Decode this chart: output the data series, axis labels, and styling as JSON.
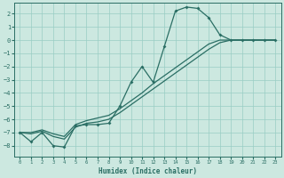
{
  "xlabel": "Humidex (Indice chaleur)",
  "bg_color": "#cce8e0",
  "grid_color": "#99cdc4",
  "line_color": "#2a6e64",
  "xlim": [
    -0.5,
    23.5
  ],
  "ylim": [
    -8.8,
    2.8
  ],
  "x_ticks": [
    0,
    1,
    2,
    3,
    4,
    5,
    6,
    7,
    8,
    9,
    10,
    11,
    12,
    13,
    14,
    15,
    16,
    17,
    18,
    19,
    20,
    21,
    22,
    23
  ],
  "y_ticks": [
    -8,
    -7,
    -6,
    -5,
    -4,
    -3,
    -2,
    -1,
    0,
    1,
    2
  ],
  "curve_x": [
    0,
    1,
    2,
    3,
    4,
    5,
    6,
    7,
    8,
    9,
    10,
    11,
    12,
    13,
    14,
    15,
    16,
    17,
    18,
    19,
    20,
    21,
    22,
    23
  ],
  "curve_y": [
    -7.0,
    -7.7,
    -7.0,
    -8.0,
    -8.1,
    -6.5,
    -6.4,
    -6.4,
    -6.3,
    -5.0,
    -3.2,
    -2.0,
    -3.2,
    -0.5,
    2.2,
    2.5,
    2.4,
    1.7,
    0.4,
    0.0,
    0.0,
    0.0,
    0.0,
    0.0
  ],
  "line2_x": [
    0,
    1,
    2,
    3,
    4,
    5,
    6,
    7,
    8,
    9,
    10,
    11,
    12,
    13,
    14,
    15,
    16,
    17,
    18,
    19,
    20,
    21,
    22,
    23
  ],
  "line2_y": [
    -7.0,
    -7.1,
    -6.9,
    -7.3,
    -7.5,
    -6.6,
    -6.3,
    -6.2,
    -6.0,
    -5.5,
    -4.9,
    -4.3,
    -3.7,
    -3.1,
    -2.5,
    -1.9,
    -1.3,
    -0.7,
    -0.2,
    0.0,
    0.0,
    0.0,
    0.0,
    0.0
  ],
  "line3_x": [
    0,
    1,
    2,
    3,
    4,
    5,
    6,
    7,
    8,
    9,
    10,
    11,
    12,
    13,
    14,
    15,
    16,
    17,
    18,
    19,
    20,
    21,
    22,
    23
  ],
  "line3_y": [
    -7.0,
    -7.0,
    -6.8,
    -7.1,
    -7.3,
    -6.4,
    -6.1,
    -5.9,
    -5.7,
    -5.2,
    -4.6,
    -4.0,
    -3.3,
    -2.7,
    -2.1,
    -1.5,
    -0.9,
    -0.3,
    0.0,
    0.0,
    0.0,
    0.0,
    0.0,
    0.0
  ]
}
